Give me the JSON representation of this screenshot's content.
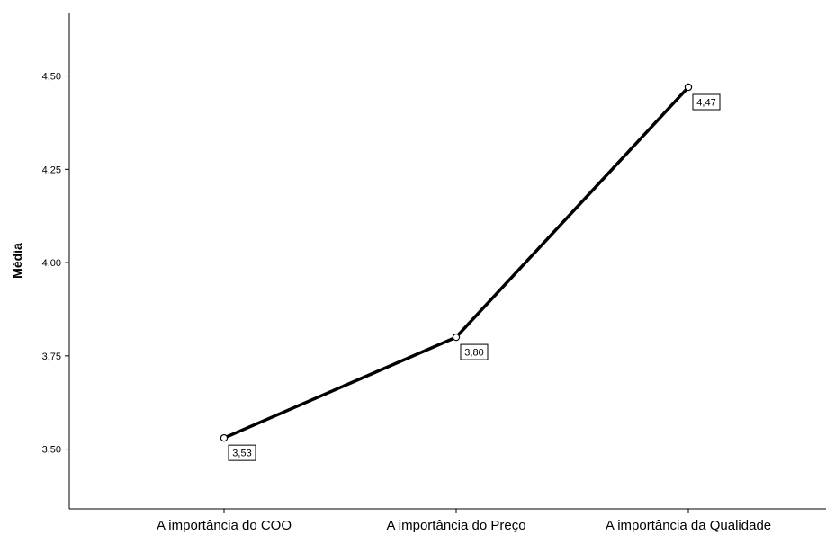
{
  "chart_data": {
    "type": "line",
    "title": "",
    "xlabel": "",
    "ylabel": "Média",
    "categories": [
      "A importância do COO",
      "A importância do Preço",
      "A importância da Qualidade"
    ],
    "values": [
      3.53,
      3.8,
      4.47
    ],
    "data_labels": [
      "3,53",
      "3,80",
      "4,47"
    ],
    "yticks": [
      3.5,
      3.75,
      4.0,
      4.25,
      4.5
    ],
    "ytick_labels": [
      "3,50",
      "3,75",
      "4,00",
      "4,25",
      "4,50"
    ],
    "ylim": [
      3.34,
      4.67
    ],
    "grid": false,
    "legend": "none",
    "line_color": "#000000",
    "marker": "open-circle"
  }
}
